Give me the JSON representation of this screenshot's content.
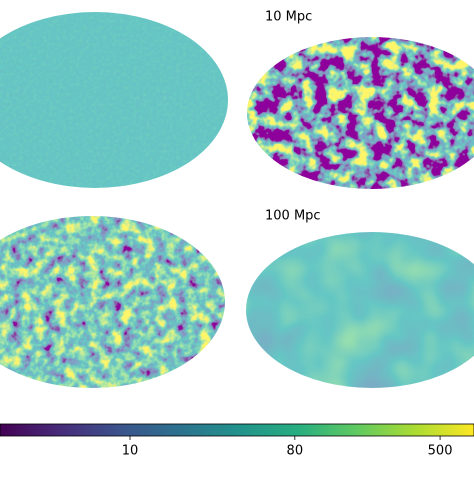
{
  "chart_data": {
    "type": "colorbar",
    "annotations": [
      "10 Mpc",
      "100 Mpc"
    ],
    "colorbar": {
      "xlim": [
        1.94,
        767
      ],
      "xticks": [
        10,
        80,
        500
      ],
      "log": true,
      "colormap": "viridis"
    }
  }
}
